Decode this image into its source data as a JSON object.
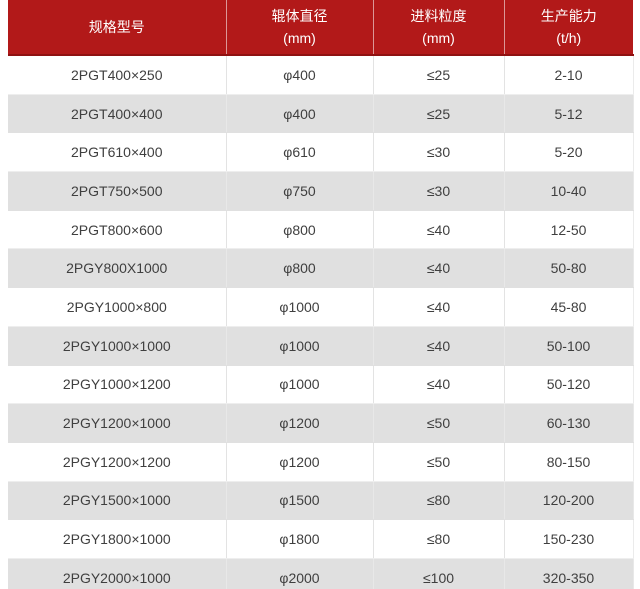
{
  "colors": {
    "header_bg": "#b21919",
    "header_border_bottom": "#8f1111",
    "header_text": "#ffffff",
    "row_alt_bg": "#e0e0e0",
    "row_text": "#3f3f3f",
    "cell_border": "#e3e3e3"
  },
  "table": {
    "header": {
      "columns": [
        {
          "label": "规格型号",
          "unit": ""
        },
        {
          "label": "辊体直径",
          "unit": "(mm)"
        },
        {
          "label": "进料粒度",
          "unit": "(mm)"
        },
        {
          "label": "生产能力",
          "unit": "(t/h)"
        }
      ]
    },
    "rows": [
      {
        "model": "2PGT400×250",
        "diameter": "φ400",
        "feed_size": "≤25",
        "capacity": "2-10"
      },
      {
        "model": "2PGT400×400",
        "diameter": "φ400",
        "feed_size": "≤25",
        "capacity": "5-12"
      },
      {
        "model": "2PGT610×400",
        "diameter": "φ610",
        "feed_size": "≤30",
        "capacity": "5-20"
      },
      {
        "model": "2PGT750×500",
        "diameter": "φ750",
        "feed_size": "≤30",
        "capacity": "10-40"
      },
      {
        "model": "2PGT800×600",
        "diameter": "φ800",
        "feed_size": "≤40",
        "capacity": "12-50"
      },
      {
        "model": "2PGY800X1000",
        "diameter": "φ800",
        "feed_size": "≤40",
        "capacity": "50-80"
      },
      {
        "model": "2PGY1000×800",
        "diameter": "φ1000",
        "feed_size": "≤40",
        "capacity": "45-80"
      },
      {
        "model": "2PGY1000×1000",
        "diameter": "φ1000",
        "feed_size": "≤40",
        "capacity": "50-100"
      },
      {
        "model": "2PGY1000×1200",
        "diameter": "φ1000",
        "feed_size": "≤40",
        "capacity": "50-120"
      },
      {
        "model": "2PGY1200×1000",
        "diameter": "φ1200",
        "feed_size": "≤50",
        "capacity": "60-130"
      },
      {
        "model": "2PGY1200×1200",
        "diameter": "φ1200",
        "feed_size": "≤50",
        "capacity": "80-150"
      },
      {
        "model": "2PGY1500×1000",
        "diameter": "φ1500",
        "feed_size": "≤80",
        "capacity": "120-200"
      },
      {
        "model": "2PGY1800×1000",
        "diameter": "φ1800",
        "feed_size": "≤80",
        "capacity": "150-230"
      },
      {
        "model": "2PGY2000×1000",
        "diameter": "φ2000",
        "feed_size": "≤100",
        "capacity": "320-350"
      }
    ]
  },
  "chart_data": {
    "type": "table",
    "columns": [
      "规格型号",
      "辊体直径 (mm)",
      "进料粒度 (mm)",
      "生产能力 (t/h)"
    ],
    "rows": [
      [
        "2PGT400×250",
        "φ400",
        "≤25",
        "2-10"
      ],
      [
        "2PGT400×400",
        "φ400",
        "≤25",
        "5-12"
      ],
      [
        "2PGT610×400",
        "φ610",
        "≤30",
        "5-20"
      ],
      [
        "2PGT750×500",
        "φ750",
        "≤30",
        "10-40"
      ],
      [
        "2PGT800×600",
        "φ800",
        "≤40",
        "12-50"
      ],
      [
        "2PGY800X1000",
        "φ800",
        "≤40",
        "50-80"
      ],
      [
        "2PGY1000×800",
        "φ1000",
        "≤40",
        "45-80"
      ],
      [
        "2PGY1000×1000",
        "φ1000",
        "≤40",
        "50-100"
      ],
      [
        "2PGY1000×1200",
        "φ1000",
        "≤40",
        "50-120"
      ],
      [
        "2PGY1200×1000",
        "φ1200",
        "≤50",
        "60-130"
      ],
      [
        "2PGY1200×1200",
        "φ1200",
        "≤50",
        "80-150"
      ],
      [
        "2PGY1500×1000",
        "φ1500",
        "≤80",
        "120-200"
      ],
      [
        "2PGY1800×1000",
        "φ1800",
        "≤80",
        "150-230"
      ],
      [
        "2PGY2000×1000",
        "φ2000",
        "≤100",
        "320-350"
      ]
    ]
  }
}
